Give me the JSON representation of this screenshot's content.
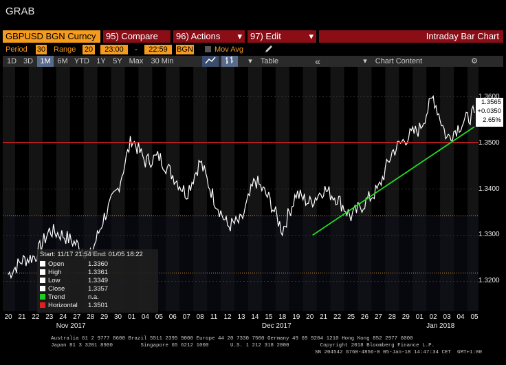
{
  "window": {
    "title": "GRAB"
  },
  "header": {
    "security": "GBPUSD BGN Curncy",
    "compare": "95) Compare",
    "actions": "96) Actions",
    "edit": "97) Edit",
    "chart_type": "Intraday Bar Chart",
    "dropdown_glyph": "▾"
  },
  "settings": {
    "period_label": "Period",
    "period_value": "30",
    "range_label": "Range",
    "range_value": "20",
    "start_time": "23:00",
    "dash": "-",
    "end_time": "22:59",
    "source": "BGN",
    "mov_avg_label": "Mov Avg"
  },
  "tabs": {
    "items": [
      "1D",
      "3D",
      "1M",
      "6M",
      "YTD",
      "1Y",
      "5Y",
      "Max",
      "30 Min"
    ],
    "active": "1M",
    "table": "Table",
    "collapse": "«",
    "chart_content": "Chart Content",
    "gear": "⚙"
  },
  "legend": {
    "header": "Start: 11/17 21:54   End: 01/05 18:22",
    "rows": [
      {
        "label": "Open",
        "value": "1.3360",
        "color": "#ffffff"
      },
      {
        "label": "High",
        "value": "1.3361",
        "color": "#ffffff"
      },
      {
        "label": "Low",
        "value": "1.3349",
        "color": "#ffffff"
      },
      {
        "label": "Close",
        "value": "1.3357",
        "color": "#ffffff"
      },
      {
        "label": "Trend",
        "value": "n.a.",
        "color": "#22cc22"
      },
      {
        "label": "Horizontal",
        "value": "1.3501",
        "color": "#e02020"
      }
    ]
  },
  "last_price": {
    "price": "1.3565",
    "change": "+0.0350",
    "pct": "2.65%"
  },
  "chart_data": {
    "type": "line",
    "y_ticks": [
      "1.3600",
      "1.3500",
      "1.3400",
      "1.3300",
      "1.3200"
    ],
    "ylim": [
      1.3135,
      1.3665
    ],
    "x_ticks": [
      "20",
      "21",
      "22",
      "23",
      "24",
      "27",
      "28",
      "29",
      "30",
      "01",
      "04",
      "05",
      "06",
      "07",
      "08",
      "11",
      "12",
      "13",
      "14",
      "15",
      "18",
      "19",
      "20",
      "21",
      "22",
      "25",
      "26",
      "27",
      "28",
      "29",
      "01",
      "02",
      "03",
      "04",
      "05"
    ],
    "month_labels": [
      "Nov 2017",
      "Dec 2017",
      "Jan 2018"
    ],
    "series": [
      {
        "x": [
          0,
          1,
          2,
          3,
          4,
          5,
          6,
          7,
          8,
          9,
          10,
          11,
          12,
          13,
          14,
          15,
          16,
          17,
          18,
          19,
          20,
          21,
          22,
          23,
          24,
          25,
          26,
          27,
          28,
          29,
          30,
          31,
          32,
          33,
          34
        ],
        "values": [
          1.3215,
          1.3245,
          1.3255,
          1.331,
          1.33,
          1.328,
          1.3255,
          1.334,
          1.34,
          1.351,
          1.346,
          1.347,
          1.343,
          1.339,
          1.346,
          1.338,
          1.332,
          1.333,
          1.342,
          1.338,
          1.331,
          1.339,
          1.337,
          1.34,
          1.338,
          1.334,
          1.337,
          1.34,
          1.348,
          1.351,
          1.353,
          1.36,
          1.351,
          1.354,
          1.3565
        ]
      }
    ],
    "horizontal_line": 1.3501,
    "trend_line": {
      "x": [
        22.2,
        34
      ],
      "values": [
        1.33,
        1.3535
      ]
    },
    "dotted_lines": [
      1.3342,
      1.3218
    ]
  },
  "footer": {
    "line1": "Australia 61 2 9777 8600 Brazil 5511 2395 9000 Europe 44 20 7330 7500 Germany 49 69 9204 1210 Hong Kong 852 2977 6000",
    "line2": "Japan 81 3 3201 8900         Singapore 65 6212 1000       U.S. 1 212 318 2000          Copyright 2018 Bloomberg Finance L.P.",
    "line3": "SN 204542 G760-4856-0 05-Jan-18 14:47:34 CET  GMT+1:00"
  }
}
